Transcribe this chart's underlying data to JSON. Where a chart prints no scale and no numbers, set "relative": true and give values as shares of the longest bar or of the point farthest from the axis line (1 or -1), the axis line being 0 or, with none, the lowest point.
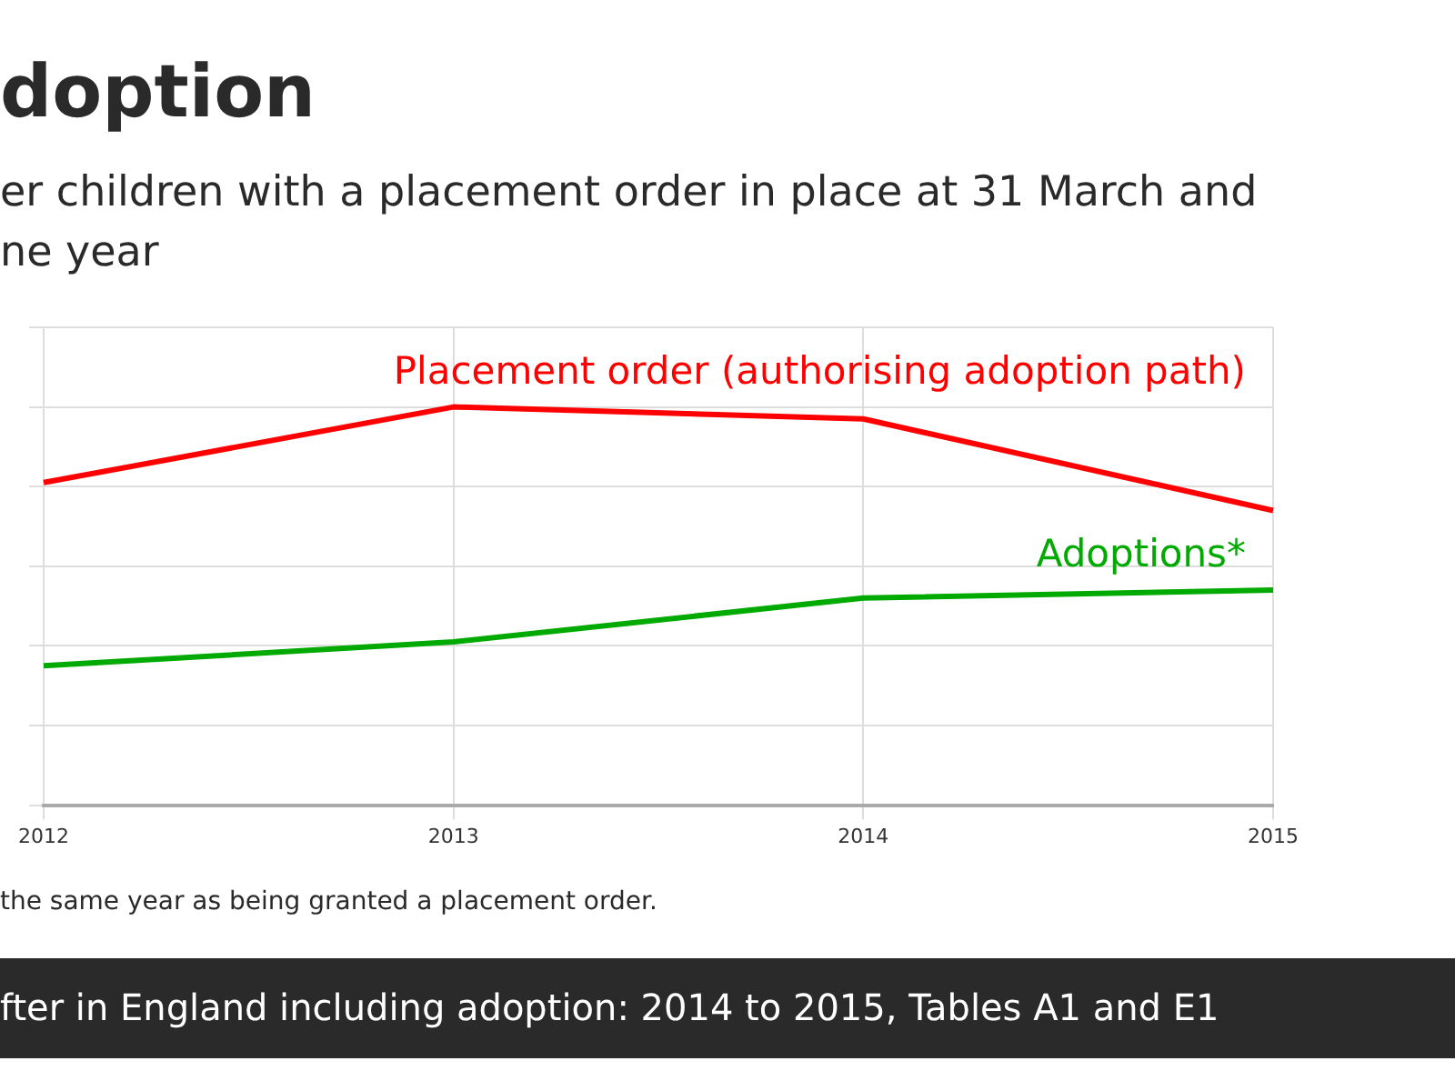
{
  "chart_data": {
    "type": "line",
    "title": "doption",
    "subtitle": "er children with a placement order in place at 31 March and\nne year",
    "categories": [
      "2012",
      "2013",
      "2014",
      "2015"
    ],
    "relative": true,
    "grid": true,
    "legend": false,
    "marker": "none",
    "line_style": "solid",
    "series": [
      {
        "name": "Placement order (authorising adoption path)",
        "color": "#ff0000",
        "values": [
          0.81,
          1,
          0.97,
          0.74
        ]
      },
      {
        "name": "Adoptions*",
        "color": "#00aa00",
        "values": [
          0.35,
          0.41,
          0.52,
          0.54
        ]
      }
    ],
    "annotations": [
      "the same year as being granted a placement order.",
      "fter in England including adoption: 2014 to 2015, Tables A1 and E1"
    ]
  }
}
